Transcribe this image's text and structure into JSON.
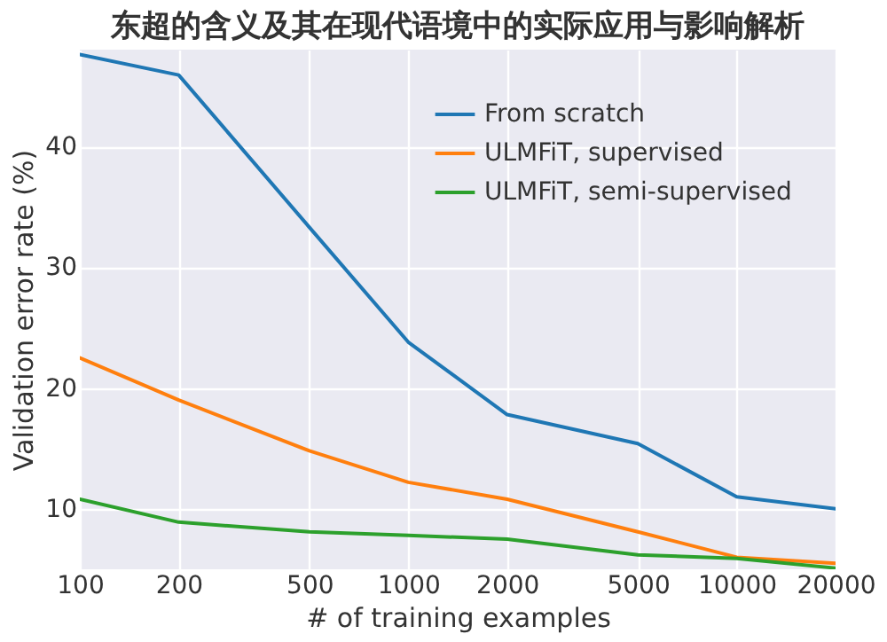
{
  "chart_data": {
    "type": "line",
    "title": "东超的含义及其在现代语境中的实际应用与影响解析",
    "xlabel": "# of training examples",
    "ylabel": "Validation error rate (%)",
    "x": [
      100,
      200,
      500,
      1000,
      2000,
      5000,
      10000,
      20000
    ],
    "log": "x",
    "xlim": [
      100,
      20000
    ],
    "xticks": [
      100,
      200,
      500,
      1000,
      2000,
      5000,
      10000,
      20000
    ],
    "ylim": [
      5,
      48
    ],
    "yticks": [
      10,
      20,
      30,
      40
    ],
    "grid": true,
    "legend": "top right",
    "marker": "none",
    "line_style": "solid",
    "series": [
      {
        "name": "From scratch",
        "color": "#1f77b4",
        "values": [
          47.6,
          45.9,
          33.3,
          23.8,
          17.8,
          15.4,
          11.0,
          10.0
        ]
      },
      {
        "name": "ULMFiT, supervised",
        "color": "#ff7f0e",
        "values": [
          22.5,
          19.0,
          14.8,
          12.2,
          10.8,
          8.1,
          6.0,
          5.5
        ]
      },
      {
        "name": "ULMFiT, semi-supervised",
        "color": "#2ca02c",
        "values": [
          10.8,
          8.9,
          8.1,
          7.8,
          7.5,
          6.2,
          5.9,
          5.1
        ]
      }
    ]
  }
}
